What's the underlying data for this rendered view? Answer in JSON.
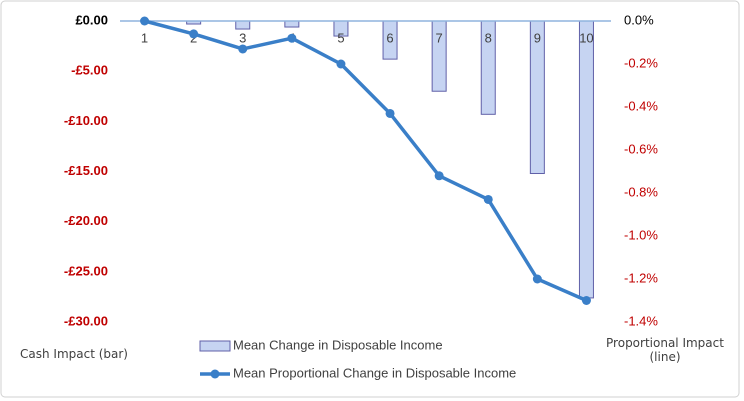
{
  "chart_data": {
    "type": "bar",
    "categories": [
      "1",
      "2",
      "3",
      "4",
      "5",
      "6",
      "7",
      "8",
      "9",
      "10"
    ],
    "y_label": "Cash Impact (bar)",
    "y2_label": "Proportional Impact (line)",
    "ylim": [
      -30,
      0
    ],
    "yticks": [
      {
        "value": 0,
        "label": "£0.00"
      },
      {
        "value": -5,
        "label": "-£5.00"
      },
      {
        "value": -10,
        "label": "-£10.00"
      },
      {
        "value": -15,
        "label": "-£15.00"
      },
      {
        "value": -20,
        "label": "-£20.00"
      },
      {
        "value": -25,
        "label": "-£25.00"
      },
      {
        "value": -30,
        "label": "-£30.00"
      }
    ],
    "y2lim": [
      -1.4,
      0
    ],
    "y2ticks": [
      {
        "value": 0,
        "label": "0.0%"
      },
      {
        "value": -0.2,
        "label": "-0.2%"
      },
      {
        "value": -0.4,
        "label": "-0.4%"
      },
      {
        "value": -0.6,
        "label": "-0.6%"
      },
      {
        "value": -0.8,
        "label": "-0.8%"
      },
      {
        "value": -1.0,
        "label": "-1.0%"
      },
      {
        "value": -1.2,
        "label": "-1.2%"
      },
      {
        "value": -1.4,
        "label": "-1.4%"
      }
    ],
    "negative_label_color": "#c00000",
    "series": [
      {
        "name": "Mean Change in Disposable Income",
        "type": "bar",
        "color": "#c6d4f2",
        "values": [
          0,
          -0.3,
          -0.8,
          -0.6,
          -1.5,
          -3.8,
          -7.0,
          -9.3,
          -15.2,
          -27.6
        ]
      },
      {
        "name": "Mean Proportional Change in Disposable Income",
        "type": "line",
        "axis": "y2",
        "color": "#3a7fc8",
        "values": [
          0,
          -0.06,
          -0.13,
          -0.08,
          -0.2,
          -0.43,
          -0.72,
          -0.83,
          -1.2,
          -1.3
        ]
      }
    ]
  }
}
